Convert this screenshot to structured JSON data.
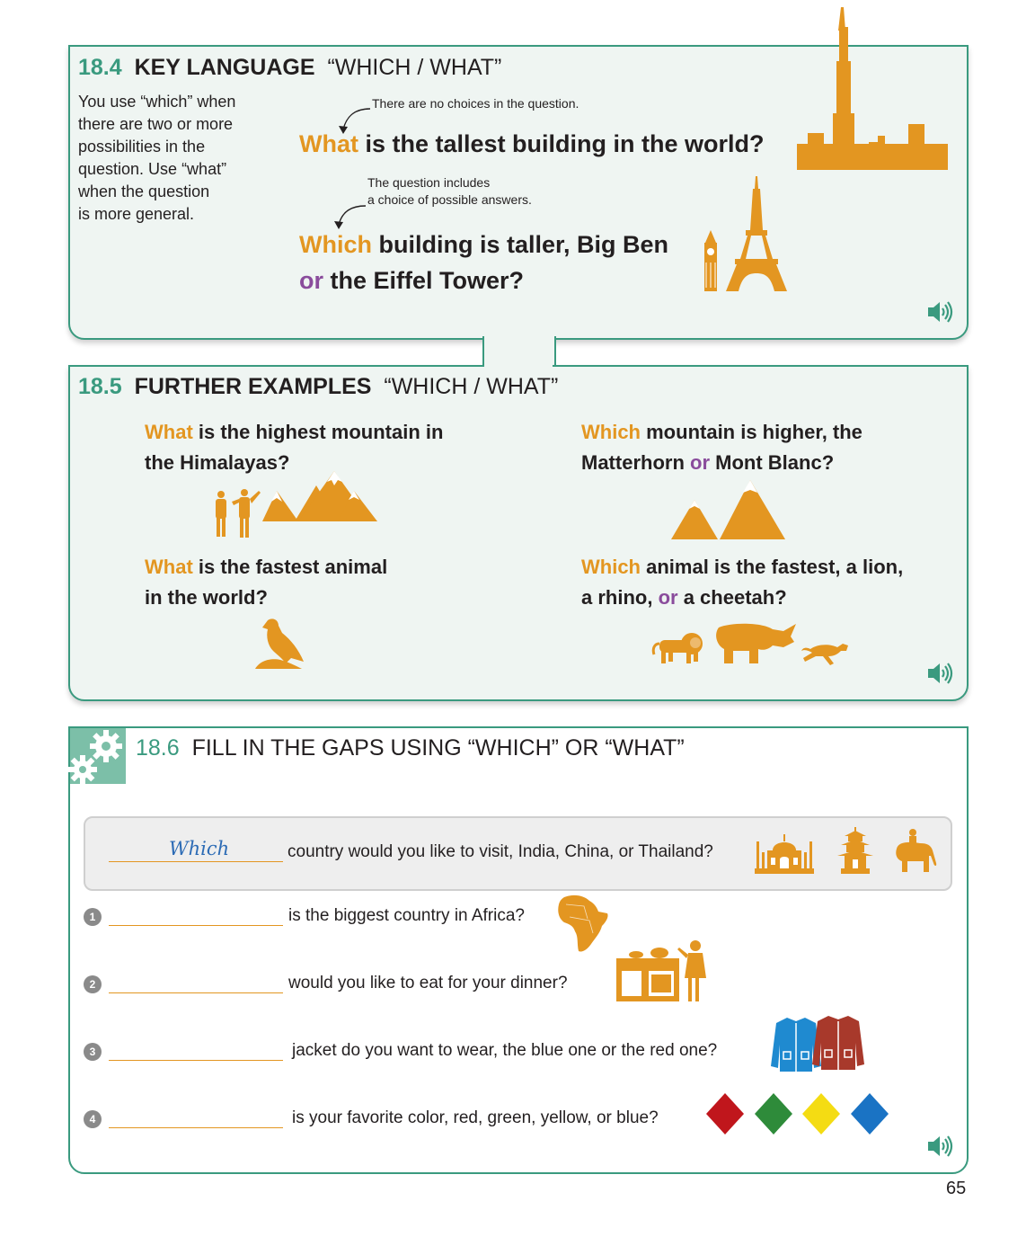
{
  "s184": {
    "number": "18.4",
    "title": "KEY LANGUAGE",
    "subtitle": "“WHICH / WHAT”",
    "explanation": [
      "You use “which” when",
      "there are two or more",
      "possibilities in the",
      "question. Use “what”",
      "when the question",
      "is more general."
    ],
    "note1": "There are no choices in the question.",
    "note2": [
      "The question includes",
      "a choice of possible answers."
    ],
    "q1_what": "What",
    "q1_rest": "is the tallest building in the world?",
    "q2_which": "Which",
    "q2_rest1": "building is taller, Big Ben",
    "q2_or": "or",
    "q2_rest2": "the Eiffel Tower?",
    "icons": [
      "skyline-icon",
      "big-ben-icon",
      "eiffel-tower-icon",
      "speaker-icon"
    ]
  },
  "s185": {
    "number": "18.5",
    "title": "FURTHER EXAMPLES",
    "subtitle": "“WHICH / WHAT”",
    "ex1": {
      "kw": "What",
      "line1": "is the highest mountain in",
      "line2": "the Himalayas?"
    },
    "ex2": {
      "kw": "Which",
      "line1": "mountain is higher, the",
      "line2a": "Matterhorn",
      "or": "or",
      "line2b": "Mont Blanc?"
    },
    "ex3": {
      "kw": "What",
      "line1": "is the fastest animal",
      "line2": "in the world?"
    },
    "ex4": {
      "kw": "Which",
      "line1": "animal is the fastest, a lion,",
      "line2a": "a rhino,",
      "or": "or",
      "line2b": "a cheetah?"
    }
  },
  "s186": {
    "number": "18.6",
    "title": "FILL IN THE GAPS USING “WHICH” OR “WHAT”",
    "example": {
      "answer": "Which",
      "text": "country would you like to visit, India, China, or Thailand?"
    },
    "items": [
      {
        "n": "1",
        "text": "is the biggest country in Africa?"
      },
      {
        "n": "2",
        "text": "would you like to eat for your dinner?"
      },
      {
        "n": "3",
        "text": "jacket do you want to wear, the blue one or the red one?"
      },
      {
        "n": "4",
        "text": "is your favorite color, red, green, yellow, or blue?"
      }
    ],
    "colors": {
      "orange": "#e39621",
      "green": "#3a9a7f",
      "red": "#c0161c",
      "dgreen": "#2e8b3a",
      "yellow": "#f4dc13",
      "blue": "#1a73c4",
      "jacket_blue": "#1f8ad0",
      "jacket_red": "#a8392b"
    }
  },
  "page_number": "65"
}
